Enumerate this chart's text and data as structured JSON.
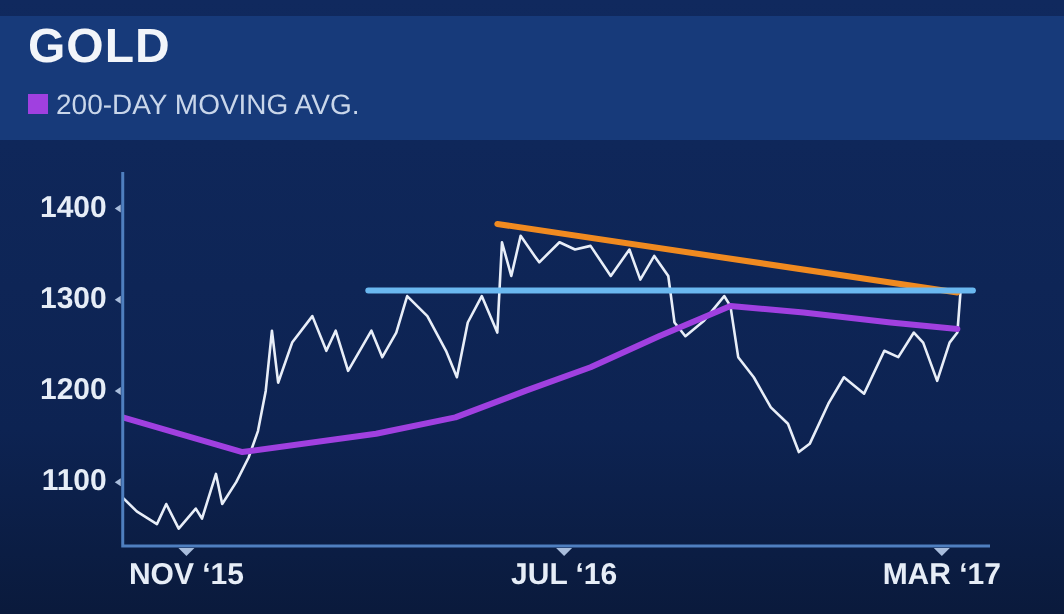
{
  "chart_data": {
    "type": "line",
    "title": "GOLD",
    "legend": "top left",
    "grid": false,
    "marker": "none",
    "xlim": [
      "2015-09-21",
      "2017-04-01"
    ],
    "xticks": [
      {
        "value": "2015-11-01",
        "label": "NOV ‘15"
      },
      {
        "value": "2016-07-01",
        "label": "JUL ‘16"
      },
      {
        "value": "2017-03-01",
        "label": "MAR ‘17"
      }
    ],
    "ylim": [
      1030,
      1440
    ],
    "yticks": [
      1100,
      1200,
      1300,
      1400
    ],
    "series": [
      {
        "color": "#e8eef8",
        "x": [
          "2015-09-21",
          "2015-09-30",
          "2015-10-13",
          "2015-10-19",
          "2015-10-27",
          "2015-11-07",
          "2015-11-11",
          "2015-11-20",
          "2015-11-24",
          "2015-12-03",
          "2015-12-11",
          "2015-12-17",
          "2015-12-22",
          "2015-12-26",
          "2015-12-30",
          "2016-01-08",
          "2016-01-21",
          "2016-01-30",
          "2016-02-05",
          "2016-02-13",
          "2016-02-28",
          "2016-03-06",
          "2016-03-15",
          "2016-03-22",
          "2016-04-04",
          "2016-04-16",
          "2016-04-23",
          "2016-04-30",
          "2016-05-09",
          "2016-05-19",
          "2016-05-22",
          "2016-05-28",
          "2016-06-03",
          "2016-06-12",
          "2016-06-15",
          "2016-06-28",
          "2016-07-08",
          "2016-07-18",
          "2016-07-31",
          "2016-08-12",
          "2016-08-19",
          "2016-08-28",
          "2016-09-06",
          "2016-09-10",
          "2016-09-17",
          "2016-09-29",
          "2016-10-12",
          "2016-10-16",
          "2016-10-21",
          "2016-10-31",
          "2016-11-11",
          "2016-11-22",
          "2016-11-29",
          "2016-12-06",
          "2016-12-18",
          "2016-12-28",
          "2017-01-10",
          "2017-01-23",
          "2017-02-01",
          "2017-02-11",
          "2017-02-17",
          "2017-02-26",
          "2017-03-06",
          "2017-03-11",
          "2017-03-13"
        ],
        "values": [
          1083,
          1068,
          1054,
          1076,
          1049,
          1071,
          1060,
          1109,
          1076,
          1100,
          1127,
          1156,
          1200,
          1266,
          1209,
          1253,
          1282,
          1244,
          1266,
          1222,
          1266,
          1237,
          1264,
          1304,
          1282,
          1244,
          1215,
          1275,
          1304,
          1264,
          1363,
          1326,
          1370,
          1348,
          1341,
          1363,
          1355,
          1359,
          1326,
          1355,
          1322,
          1348,
          1326,
          1275,
          1260,
          1277,
          1304,
          1293,
          1237,
          1215,
          1182,
          1164,
          1133,
          1142,
          1186,
          1215,
          1197,
          1244,
          1237,
          1264,
          1253,
          1211,
          1253,
          1264,
          1308
        ]
      },
      {
        "name": "200-DAY MOVING AVG.",
        "color": "#a040e0",
        "x": [
          "2015-09-21",
          "2015-12-07",
          "2016-03-02",
          "2016-04-22",
          "2016-06-06",
          "2016-07-18",
          "2016-08-31",
          "2016-10-16",
          "2016-12-02",
          "2017-01-27",
          "2017-03-11"
        ],
        "values": [
          1171,
          1133,
          1153,
          1171,
          1200,
          1226,
          1260,
          1293,
          1286,
          1275,
          1268
        ]
      },
      {
        "color": "#f08a20",
        "x": [
          "2016-05-19",
          "2017-03-11"
        ],
        "values": [
          1383,
          1308
        ]
      },
      {
        "color": "#6ab8f0",
        "x": [
          "2016-02-26",
          "2017-03-21"
        ],
        "values": [
          1310,
          1310
        ]
      }
    ]
  }
}
